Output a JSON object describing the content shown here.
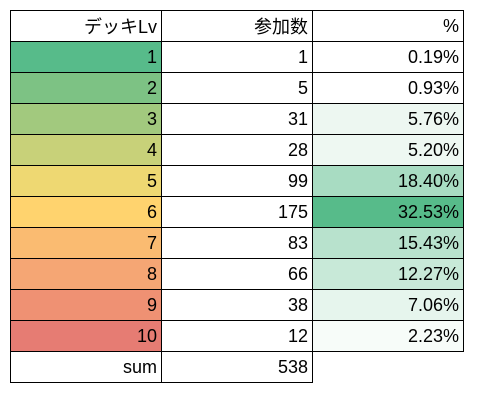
{
  "headers": [
    "デッキLv",
    "参加数",
    "%"
  ],
  "rows": [
    {
      "lv": "1",
      "count": "1",
      "pct": "0.19%",
      "lv_color": "#57bb8a",
      "pct_color": "#ffffff"
    },
    {
      "lv": "2",
      "count": "5",
      "pct": "0.93%",
      "lv_color": "#7dc284",
      "pct_color": "#ffffff"
    },
    {
      "lv": "3",
      "count": "31",
      "pct": "5.76%",
      "lv_color": "#a2c97e",
      "pct_color": "#edf7f1"
    },
    {
      "lv": "4",
      "count": "28",
      "pct": "5.20%",
      "lv_color": "#c8d179",
      "pct_color": "#eef8f2"
    },
    {
      "lv": "5",
      "count": "99",
      "pct": "18.40%",
      "lv_color": "#eed872",
      "pct_color": "#a8dcc2"
    },
    {
      "lv": "6",
      "count": "175",
      "pct": "32.53%",
      "lv_color": "#ffd36e",
      "pct_color": "#57bb8a"
    },
    {
      "lv": "7",
      "count": "83",
      "pct": "15.43%",
      "lv_color": "#fabb71",
      "pct_color": "#b8e2cd"
    },
    {
      "lv": "8",
      "count": "66",
      "pct": "12.27%",
      "lv_color": "#f5a674",
      "pct_color": "#c8e9d8"
    },
    {
      "lv": "9",
      "count": "38",
      "pct": "7.06%",
      "lv_color": "#ef9173",
      "pct_color": "#e6f5ed"
    },
    {
      "lv": "10",
      "count": "12",
      "pct": "2.23%",
      "lv_color": "#e67c73",
      "pct_color": "#f7fcf9"
    }
  ],
  "sum": {
    "label": "sum",
    "value": "538"
  }
}
